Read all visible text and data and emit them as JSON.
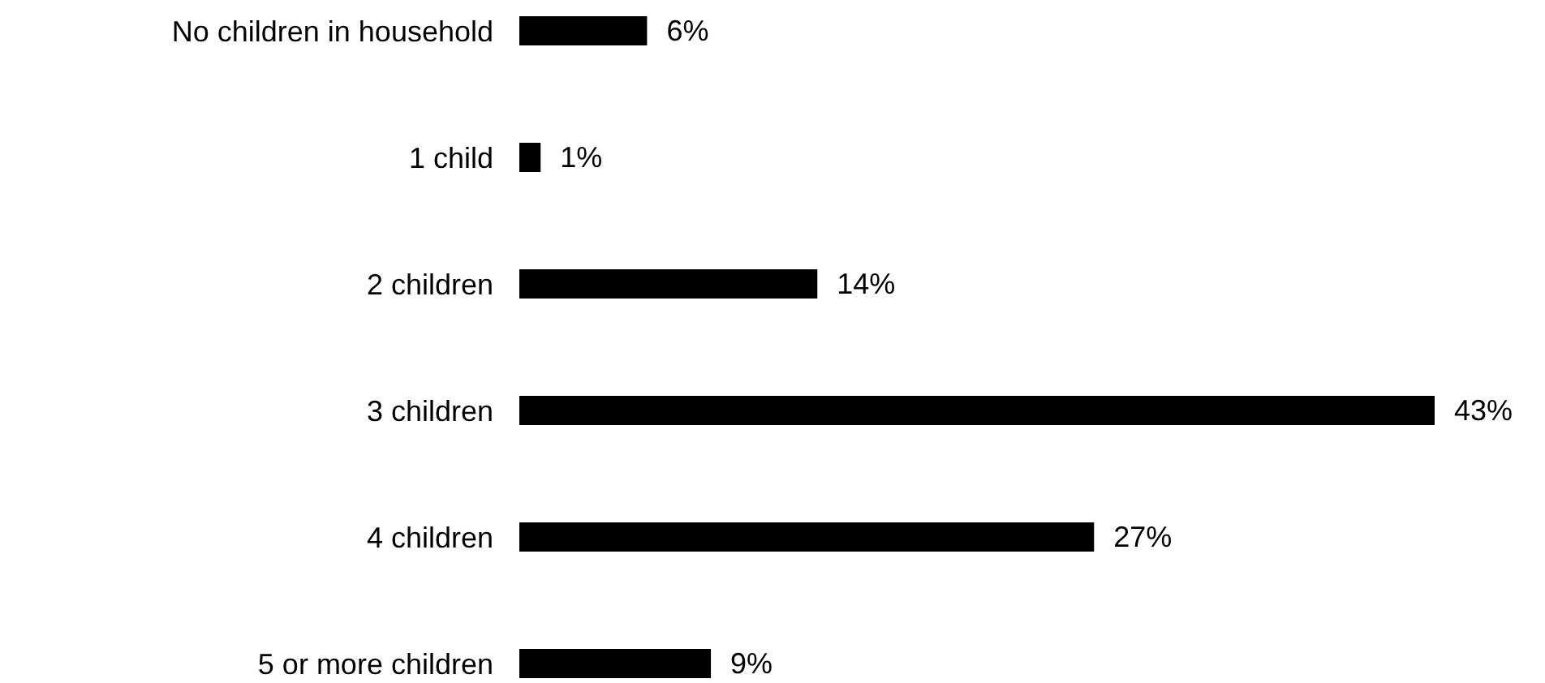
{
  "chart_data": {
    "type": "bar",
    "orientation": "horizontal",
    "categories": [
      "No children in household",
      "1 child",
      "2 children",
      "3 children",
      "4 children",
      "5 or more children"
    ],
    "values": [
      6,
      1,
      14,
      43,
      27,
      9
    ],
    "value_labels": [
      "6%",
      "1%",
      "14%",
      "43%",
      "27%",
      "9%"
    ],
    "color": "#000000",
    "xlim": [
      0,
      43
    ],
    "grid": false,
    "legend": false
  }
}
